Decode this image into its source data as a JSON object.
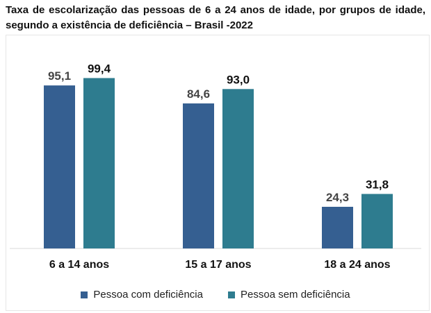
{
  "title": "Taxa de escolarização das pessoas de 6 a 24 anos de idade, por grupos de idade, segundo a existência de deficiência – Brasil -2022",
  "colors": {
    "with_disability": "#355f91",
    "without_disability": "#2e7c8f"
  },
  "chart_data": {
    "type": "bar",
    "title": "Taxa de escolarização das pessoas de 6 a 24 anos de idade, por grupos de idade, segundo a existência de deficiência – Brasil -2022",
    "categories": [
      "6 a 14 anos",
      "15 a 17 anos",
      "18 a 24 anos"
    ],
    "series": [
      {
        "name": "Pessoa com deficiência",
        "values": [
          95.1,
          84.6,
          24.3
        ],
        "labels": [
          "95,1",
          "84,6",
          "24,3"
        ]
      },
      {
        "name": "Pessoa sem deficiência",
        "values": [
          99.4,
          93.0,
          31.8
        ],
        "labels": [
          "99,4",
          "93,0",
          "31,8"
        ]
      }
    ],
    "ylim": [
      0,
      100
    ],
    "grid": false,
    "legend": "bottom"
  }
}
